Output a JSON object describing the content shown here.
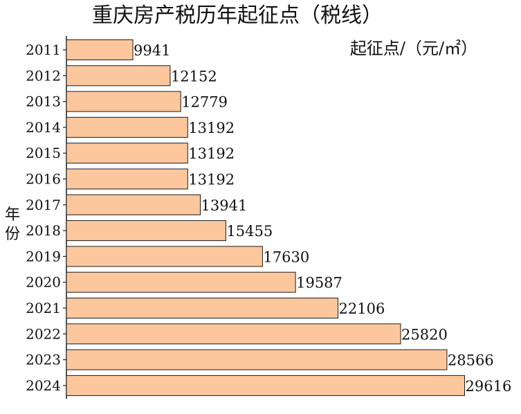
{
  "chart_data": {
    "type": "bar",
    "orientation": "horizontal",
    "title": "重庆房产税历年起征点（税线）",
    "unit_label": "起征点/（元/㎡）",
    "xlabel": "",
    "ylabel": "年份",
    "categories": [
      "2011",
      "2012",
      "2013",
      "2014",
      "2015",
      "2016",
      "2017",
      "2018",
      "2019",
      "2020",
      "2021",
      "2022",
      "2023",
      "2024"
    ],
    "values": [
      9941,
      12152,
      12779,
      13192,
      13192,
      13192,
      13941,
      15455,
      17630,
      19587,
      22106,
      25820,
      28566,
      29616
    ],
    "value_labels": [
      "9941",
      "12152",
      "12779",
      "13192",
      "13192",
      "13192",
      "13941",
      "15455",
      "17630",
      "19587",
      "22106",
      "25820",
      "28566",
      "29616"
    ],
    "xlim": [
      6000,
      29800
    ],
    "grid": false,
    "legend": "none",
    "colors": {
      "bar_fill": "#FCC79D",
      "bar_stroke": "#1a1a1a",
      "axis": "#1a1a1a",
      "text": "#111111"
    }
  }
}
